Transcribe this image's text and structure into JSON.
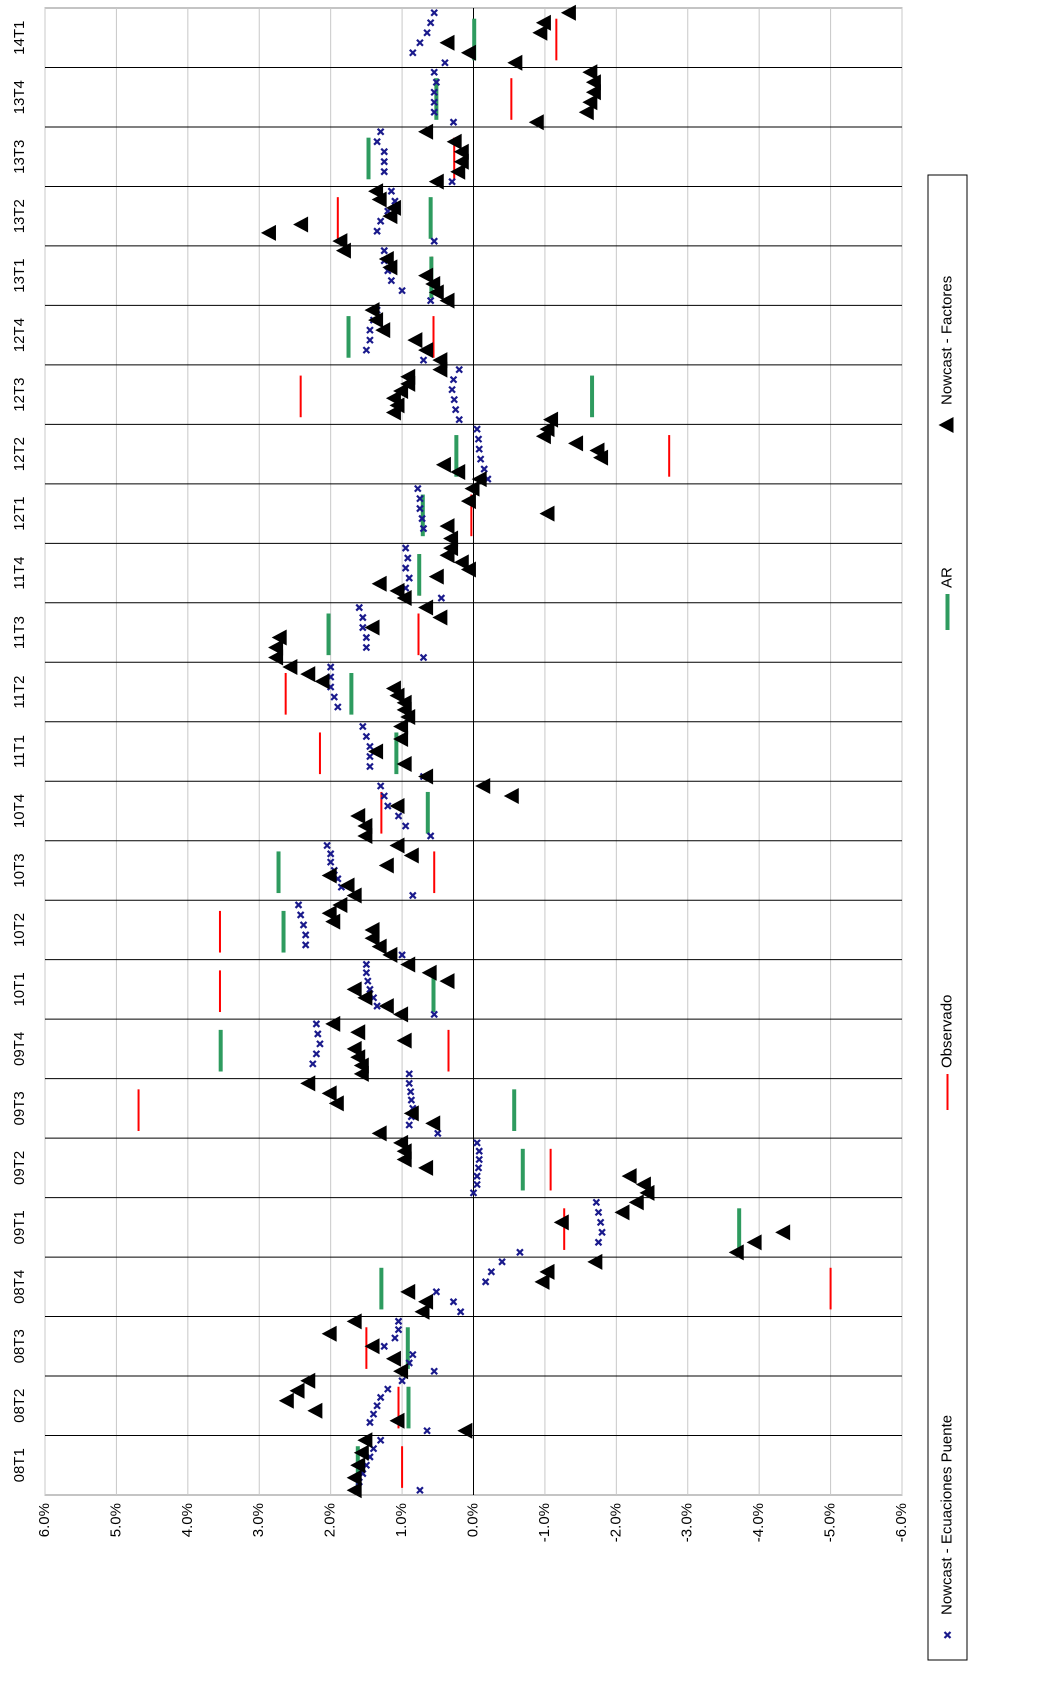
{
  "chart_data": {
    "type": "scatter",
    "categories": [
      "08T1",
      "08T2",
      "08T3",
      "08T4",
      "09T1",
      "09T2",
      "09T3",
      "09T4",
      "10T1",
      "10T2",
      "10T3",
      "10T4",
      "11T1",
      "11T2",
      "11T3",
      "11T4",
      "12T1",
      "12T2",
      "12T3",
      "12T4",
      "13T1",
      "13T2",
      "13T3",
      "13T4",
      "14T1"
    ],
    "ylim": [
      -6,
      6
    ],
    "yticks": [
      {
        "value": -6,
        "label": "-6.0%"
      },
      {
        "value": -5,
        "label": "-5.0%"
      },
      {
        "value": -4,
        "label": "-4.0%"
      },
      {
        "value": -3,
        "label": "-3.0%"
      },
      {
        "value": -2,
        "label": "-2.0%"
      },
      {
        "value": -1,
        "label": "-1.0%"
      },
      {
        "value": 0,
        "label": "0.0%"
      },
      {
        "value": 1,
        "label": "1.0%"
      },
      {
        "value": 2,
        "label": "2.0%"
      },
      {
        "value": 3,
        "label": "3.0%"
      },
      {
        "value": 4,
        "label": "4.0%"
      },
      {
        "value": 5,
        "label": "5.0%"
      },
      {
        "value": 6,
        "label": "6.0%"
      }
    ],
    "grid": true,
    "series": [
      {
        "name": "Nowcast - Ecuaciones Puente",
        "color": "#1a1a8c",
        "marker": "x",
        "values": [
          [
            0.75,
            1.6,
            1.55,
            1.5,
            1.45,
            1.4,
            1.3
          ],
          [
            0.65,
            1.45,
            1.4,
            1.35,
            1.3,
            1.2,
            1.0
          ],
          [
            0.55,
            0.9,
            0.85,
            1.25,
            1.1,
            1.05,
            1.05
          ],
          [
            0.18,
            0.28,
            0.52,
            -0.17,
            -0.25,
            -0.4
          ],
          [
            -0.65,
            -1.75,
            -1.8,
            -1.78,
            -1.75,
            -1.72
          ],
          [
            0.0,
            -0.05,
            -0.05,
            -0.07,
            -0.08,
            -0.08,
            -0.05
          ],
          [
            0.5,
            0.9,
            0.87,
            0.85,
            0.87,
            0.88,
            0.9
          ],
          [
            0.9,
            2.25,
            2.2,
            2.15,
            2.18,
            2.2
          ],
          [
            0.55,
            1.35,
            1.4,
            1.45,
            1.48,
            1.5,
            1.5
          ],
          [
            1.0,
            2.35,
            2.35,
            2.38,
            2.42,
            2.45
          ],
          [
            0.85,
            1.85,
            1.9,
            1.95,
            2.0,
            2.0,
            2.05
          ],
          [
            0.6,
            0.95,
            1.05,
            1.2,
            1.25,
            1.3
          ],
          [
            0.7,
            1.45,
            1.45,
            1.45,
            1.5,
            1.55
          ],
          [
            0.9,
            1.9,
            1.95,
            2.0,
            2.0,
            2.0
          ],
          [
            0.7,
            1.5,
            1.5,
            1.55,
            1.55,
            1.6
          ],
          [
            0.45,
            0.95,
            0.9,
            0.95,
            0.92,
            0.95
          ],
          [
            0.3,
            0.7,
            0.72,
            0.75,
            0.75,
            0.78
          ],
          [
            -0.2,
            -0.15,
            -0.1,
            -0.08,
            -0.07,
            -0.05
          ],
          [
            0.2,
            0.25,
            0.27,
            0.3,
            0.28,
            0.2
          ],
          [
            0.7,
            1.5,
            1.45,
            1.45,
            1.4,
            1.35
          ],
          [
            0.6,
            1.0,
            1.15,
            1.2,
            1.25,
            1.25
          ],
          [
            0.55,
            1.35,
            1.3,
            1.2,
            1.1,
            1.15
          ],
          [
            0.3,
            1.25,
            1.25,
            1.25,
            1.35,
            1.3
          ],
          [
            0.28,
            0.55,
            0.55,
            0.55,
            0.52,
            0.55
          ],
          [
            0.4,
            0.85,
            0.75,
            0.65,
            0.6,
            0.55
          ]
        ]
      },
      {
        "name": "Observado",
        "color": "#ff0000",
        "marker": "dash",
        "values": [
          1.0,
          1.05,
          1.5,
          -5.0,
          -1.27,
          -1.08,
          4.69,
          0.35,
          3.55,
          3.55,
          0.55,
          1.29,
          2.15,
          2.63,
          0.77,
          0.75,
          0.03,
          -2.74,
          2.42,
          0.56,
          0.58,
          1.9,
          0.27,
          -0.53,
          -1.16
        ]
      },
      {
        "name": "AR",
        "color": "#2e9b5f",
        "marker": "dash",
        "values": [
          1.62,
          0.91,
          0.92,
          1.29,
          -3.72,
          -0.69,
          -0.57,
          3.54,
          0.56,
          2.66,
          2.73,
          0.64,
          1.08,
          1.71,
          2.03,
          0.76,
          0.71,
          0.24,
          -1.66,
          1.75,
          0.59,
          0.6,
          1.47,
          0.52,
          -0.01
        ]
      },
      {
        "name": "Nowcast - Factores",
        "color": "#000000",
        "marker": "triangle",
        "values": [
          [
            1.65,
            1.65,
            1.6,
            1.55,
            1.5
          ],
          [
            0.1,
            1.05,
            2.2,
            2.6,
            2.45,
            2.3
          ],
          [
            1.0,
            1.1,
            1.4,
            2.0,
            1.65
          ],
          [
            0.7,
            0.65,
            0.9,
            -0.98,
            -1.05,
            -1.72
          ],
          [
            -3.7,
            -3.95,
            -4.35,
            -1.25,
            -2.1,
            -2.3
          ],
          [
            -2.45,
            -2.4,
            -2.2,
            0.65,
            0.95,
            0.95,
            1.0
          ],
          [
            1.3,
            0.55,
            0.85,
            1.9,
            2.0,
            2.3
          ],
          [
            1.55,
            1.55,
            1.6,
            1.65,
            0.95,
            1.6,
            1.95
          ],
          [
            1.0,
            1.2,
            1.5,
            1.65,
            0.35,
            0.6,
            0.9
          ],
          [
            1.15,
            1.3,
            1.4,
            1.4,
            1.95,
            2.0,
            1.85
          ],
          [
            1.65,
            1.75,
            2.0,
            1.2,
            0.85,
            1.05
          ],
          [
            1.5,
            1.5,
            1.6,
            1.05,
            -0.55,
            -0.15
          ],
          [
            0.65,
            0.95,
            1.35,
            1.0,
            1.0
          ],
          [
            0.9,
            0.95,
            0.95,
            1.05,
            1.1,
            2.1,
            2.3,
            2.55
          ],
          [
            2.75,
            2.75,
            2.7,
            1.4,
            0.45,
            0.65
          ],
          [
            0.95,
            1.05,
            1.3,
            0.5,
            0.05,
            0.15,
            0.35,
            0.3
          ],
          [
            0.3,
            0.35,
            -1.05,
            0.05,
            0.0
          ],
          [
            -0.1,
            0.2,
            0.4,
            -1.8,
            -1.75,
            -1.45,
            -1.0,
            -1.05
          ],
          [
            -1.1,
            1.1,
            1.05,
            1.1,
            1.0,
            0.9,
            0.9,
            0.45
          ],
          [
            0.45,
            0.65,
            0.8,
            1.25,
            1.35,
            1.4
          ],
          [
            0.35,
            0.5,
            0.55,
            0.65,
            1.15,
            1.2,
            1.8
          ],
          [
            1.85,
            2.85,
            2.4,
            1.15,
            1.1,
            1.3,
            1.35
          ],
          [
            0.5,
            0.2,
            0.15,
            0.15,
            0.25,
            0.65
          ],
          [
            -0.9,
            -1.6,
            -1.65,
            -1.7,
            -1.7,
            -1.65
          ],
          [
            -0.6,
            0.05,
            0.35,
            -0.95,
            -1.0,
            -1.35
          ]
        ]
      }
    ]
  }
}
